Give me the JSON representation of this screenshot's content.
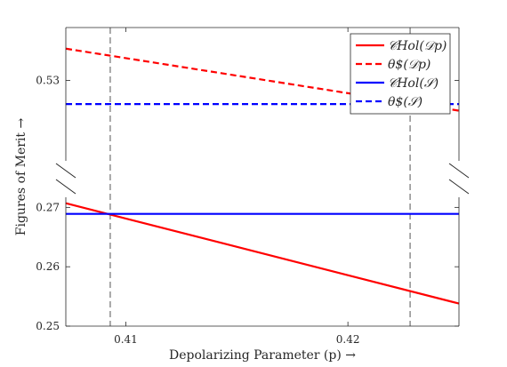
{
  "chart_data": {
    "type": "line",
    "xlabel": "Depolarizing Parameter (p) →",
    "ylabel": "Figures of Merit →",
    "xlim": [
      0.4073,
      0.425
    ],
    "x_ticks": [
      0.41,
      0.42
    ],
    "x_tick_labels": [
      "0.41",
      "0.42"
    ],
    "y_axis_broken": true,
    "y_segments": [
      {
        "range": [
          0.25,
          0.2717
        ],
        "ticks": [
          0.25,
          0.26,
          0.27
        ],
        "tick_labels": [
          "0.25",
          "0.26",
          "0.27"
        ]
      },
      {
        "range": [
          0.5239,
          0.534
        ],
        "ticks": [
          0.53
        ],
        "tick_labels": [
          "0.53"
        ]
      }
    ],
    "vlines": [
      0.4093,
      0.4228
    ],
    "series": [
      {
        "name": "𝒞Hol(𝒟p)",
        "style": "solid",
        "color": "#ff0000",
        "segment": 0,
        "points": [
          [
            0.4073,
            0.2707
          ],
          [
            0.425,
            0.2538
          ]
        ]
      },
      {
        "name": "θ$(𝒟p)",
        "style": "dashed",
        "color": "#ff0000",
        "segment": 1,
        "points": [
          [
            0.4073,
            0.5324
          ],
          [
            0.425,
            0.5277
          ]
        ]
      },
      {
        "name": "𝒞Hol(𝒮)",
        "style": "solid",
        "color": "#0000ff",
        "segment": 0,
        "points": [
          [
            0.4073,
            0.2689
          ],
          [
            0.425,
            0.2689
          ]
        ]
      },
      {
        "name": "θ$(𝒮)",
        "style": "dashed",
        "color": "#0000ff",
        "segment": 1,
        "points": [
          [
            0.4073,
            0.5282
          ],
          [
            0.425,
            0.5282
          ]
        ]
      }
    ],
    "legend_position": "top-right",
    "grid": false
  }
}
